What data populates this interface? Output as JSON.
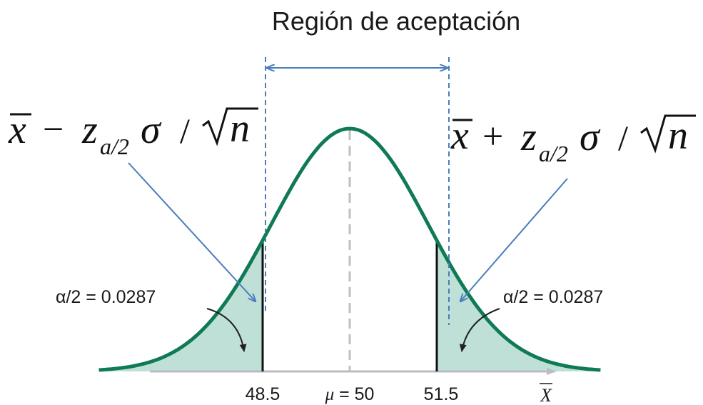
{
  "title": "Región de aceptación",
  "distribution": {
    "mean": 50,
    "lower_critical": 48.5,
    "upper_critical": 51.5,
    "tail_probability_each": 0.0287
  },
  "labels": {
    "lower_value": "48.5",
    "mu_symbol": "μ",
    "mu_equals": " = 50",
    "upper_value": "51.5",
    "axis_variable": "X",
    "alpha_left": "α/2 = 0.0287",
    "alpha_right": "α/2 = 0.0287"
  },
  "formula_lower": {
    "xbar": "x",
    "operator": "−",
    "z": "z",
    "subscript": "a/2",
    "sigma": "σ",
    "slash": "/",
    "n": "n"
  },
  "formula_upper": {
    "xbar": "x",
    "operator": "+",
    "z": "z",
    "subscript": "a/2",
    "sigma": "σ",
    "slash": "/",
    "n": "n"
  },
  "colors": {
    "curve": "#0f7a55",
    "tail_fill": "#bfe0d6",
    "axis": "#b9bcc3",
    "center_dash": "#bfbfbf",
    "boundary_dash": "#4a7ebb",
    "pointer_arrow": "#4a7ebb",
    "text": "#1a1a1a"
  }
}
